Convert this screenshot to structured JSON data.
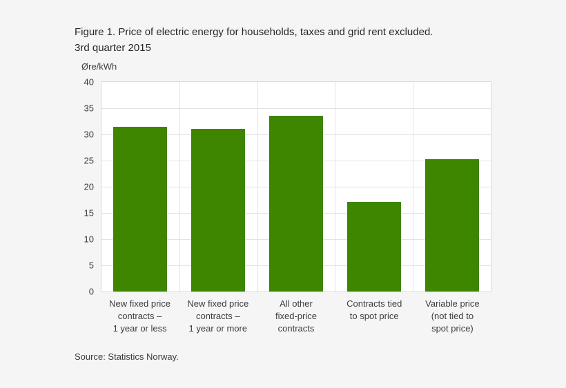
{
  "figure": {
    "title_line1": "Figure 1. Price of electric energy for households, taxes and grid rent excluded.",
    "title_line2": "3rd quarter 2015",
    "unit_label": "Øre/kWh",
    "source": "Source: Statistics Norway."
  },
  "colors": {
    "bar": "#3e8500",
    "page_background": "#f5f5f5",
    "plot_background": "#ffffff",
    "gridline": "#e3e3e3",
    "text": "#3c3c3c"
  },
  "chart_data": {
    "type": "bar",
    "title": "Figure 1. Price of electric energy for households, taxes and grid rent excluded. 3rd quarter 2015",
    "xlabel": "",
    "ylabel": "Øre/kWh",
    "ylim": [
      0,
      40
    ],
    "ytick_step": 5,
    "grid": true,
    "legend": "none",
    "categories": [
      "New fixed price contracts – 1 year or less",
      "New fixed price contracts – 1 year or more",
      "All other fixed-price contracts",
      "Contracts tied to spot price",
      "Variable price (not tied to spot price)"
    ],
    "category_lines": [
      [
        "New fixed price",
        "contracts –",
        "1 year or less"
      ],
      [
        "New fixed price",
        "contracts –",
        "1 year or more"
      ],
      [
        "All other",
        "fixed-price",
        "contracts"
      ],
      [
        "Contracts tied",
        "to spot price"
      ],
      [
        "Variable price",
        "(not tied to",
        "spot price)"
      ]
    ],
    "values": [
      31.5,
      31.1,
      33.5,
      17.1,
      25.3
    ],
    "bar_color": "#3e8500",
    "source": "Source: Statistics Norway."
  }
}
